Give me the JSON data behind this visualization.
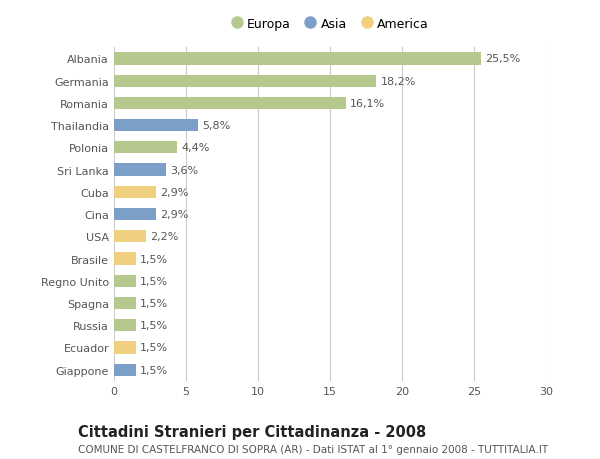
{
  "countries": [
    "Albania",
    "Germania",
    "Romania",
    "Thailandia",
    "Polonia",
    "Sri Lanka",
    "Cuba",
    "Cina",
    "USA",
    "Brasile",
    "Regno Unito",
    "Spagna",
    "Russia",
    "Ecuador",
    "Giappone"
  ],
  "values": [
    25.5,
    18.2,
    16.1,
    5.8,
    4.4,
    3.6,
    2.9,
    2.9,
    2.2,
    1.5,
    1.5,
    1.5,
    1.5,
    1.5,
    1.5
  ],
  "labels": [
    "25,5%",
    "18,2%",
    "16,1%",
    "5,8%",
    "4,4%",
    "3,6%",
    "2,9%",
    "2,9%",
    "2,2%",
    "1,5%",
    "1,5%",
    "1,5%",
    "1,5%",
    "1,5%",
    "1,5%"
  ],
  "continents": [
    "Europa",
    "Europa",
    "Europa",
    "Asia",
    "Europa",
    "Asia",
    "America",
    "Asia",
    "America",
    "America",
    "Europa",
    "Europa",
    "Europa",
    "America",
    "Asia"
  ],
  "colors": {
    "Europa": "#b5c98e",
    "Asia": "#7b9fc7",
    "America": "#f0d080"
  },
  "xlim": [
    0,
    30
  ],
  "xticks": [
    0,
    5,
    10,
    15,
    20,
    25,
    30
  ],
  "title": "Cittadini Stranieri per Cittadinanza - 2008",
  "subtitle": "COMUNE DI CASTELFRANCO DI SOPRA (AR) - Dati ISTAT al 1° gennaio 2008 - TUTTITALIA.IT",
  "bg_color": "#ffffff",
  "grid_color": "#cccccc",
  "bar_height": 0.55,
  "label_fontsize": 8,
  "tick_fontsize": 8,
  "title_fontsize": 10.5,
  "subtitle_fontsize": 7.5
}
